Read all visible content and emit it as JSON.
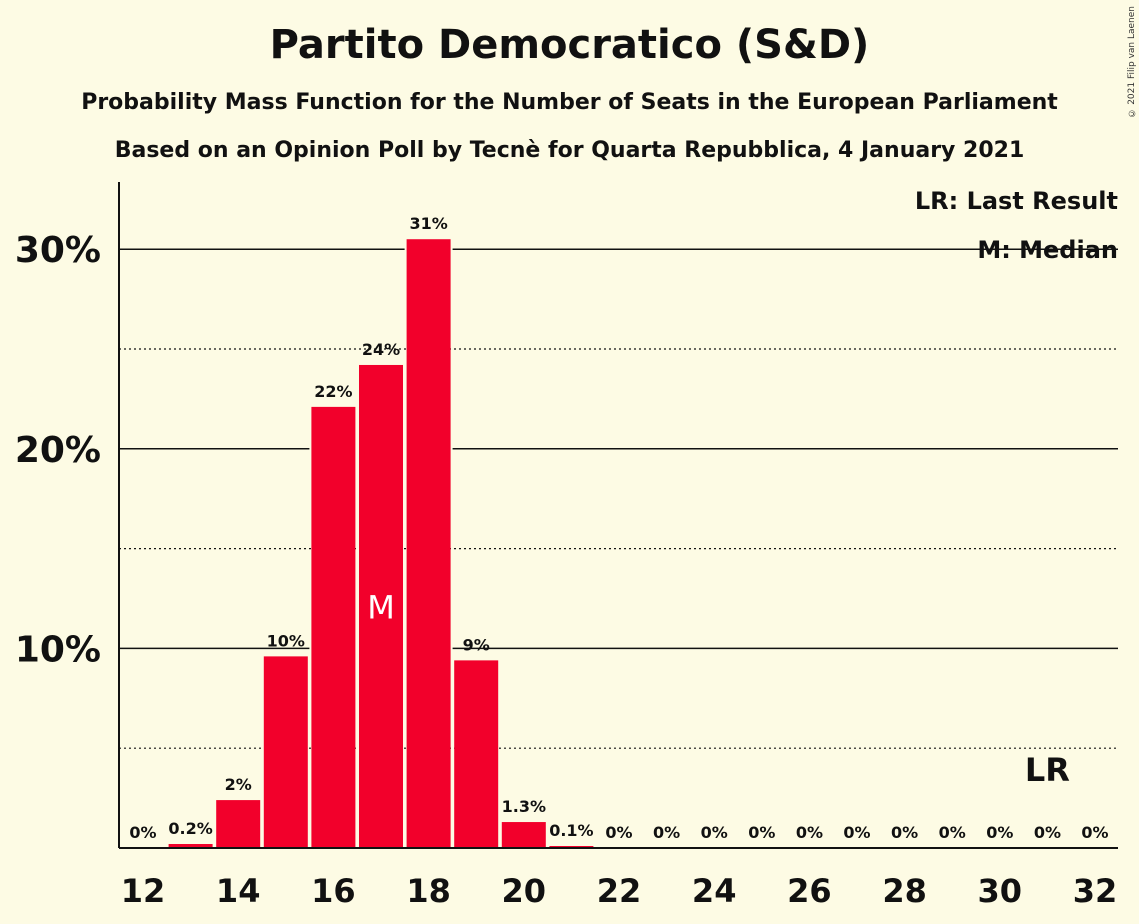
{
  "title": "Partito Democratico (S&D)",
  "subtitle": "Probability Mass Function for the Number of Seats in the European Parliament",
  "subtitle2": "Based on an Opinion Poll by Tecnè for Quarta Repubblica, 4 January 2021",
  "copyright": "© 2021 Filip van Laenen",
  "colors": {
    "bar": "#f2002b",
    "background": "#fdfbe4",
    "text": "#111111"
  },
  "chart_data": {
    "type": "bar",
    "categories": [
      12,
      13,
      14,
      15,
      16,
      17,
      18,
      19,
      20,
      21,
      22,
      23,
      24,
      25,
      26,
      27,
      28,
      29,
      30,
      31,
      32
    ],
    "values": [
      0,
      0.2,
      2.4,
      9.6,
      22.1,
      24.2,
      30.5,
      9.4,
      1.3,
      0.1,
      0,
      0,
      0,
      0,
      0,
      0,
      0,
      0,
      0,
      0,
      0
    ],
    "data_labels": [
      "0%",
      "0.2%",
      "2%",
      "10%",
      "22%",
      "24%",
      "31%",
      "9%",
      "1.3%",
      "0.1%",
      "0%",
      "0%",
      "0%",
      "0%",
      "0%",
      "0%",
      "0%",
      "0%",
      "0%",
      "0%",
      "0%"
    ],
    "x_ticks": [
      12,
      14,
      16,
      18,
      20,
      22,
      24,
      26,
      28,
      30,
      32
    ],
    "y_ticks": [
      {
        "value": 10,
        "label": "10%"
      },
      {
        "value": 20,
        "label": "20%"
      },
      {
        "value": 30,
        "label": "30%"
      }
    ],
    "ylim": [
      0,
      33.2
    ],
    "median": {
      "seats": 17,
      "label": "M"
    },
    "last_result": {
      "seats": 31,
      "label": "LR"
    },
    "legend": [
      "LR: Last Result",
      "M: Median"
    ],
    "legend_position": "top-right",
    "grid": true,
    "xlabel": "",
    "ylabel": ""
  }
}
